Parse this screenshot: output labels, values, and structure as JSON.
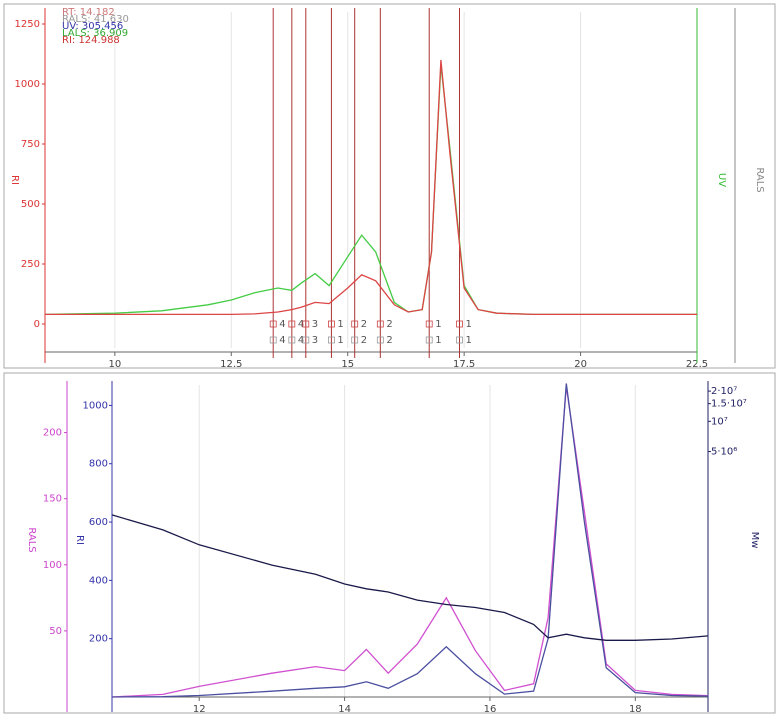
{
  "chart_data": [
    {
      "type": "line",
      "legend": [
        {
          "label": "RT: 14.182",
          "color": "#c77"
        },
        {
          "label": "RALS: 41.630",
          "color": "#999"
        },
        {
          "label": "UV: 305.456",
          "color": "#33a"
        },
        {
          "label": "LALS: 36.909",
          "color": "#3a3"
        },
        {
          "label": "RI: 124.988",
          "color": "#c33"
        }
      ],
      "ylabel": "RI",
      "ycolor": "#d33",
      "y2label": "UV",
      "y2color": "#3b3",
      "y3label": "RALS",
      "y3color": "#888",
      "xlim": [
        8.5,
        22.5
      ],
      "xticks": [
        10,
        12.5,
        15,
        17.5,
        20,
        22.5
      ],
      "ylim": [
        -100,
        1300
      ],
      "yticks": [
        0,
        250,
        500,
        750,
        1000,
        1250
      ],
      "grid": true,
      "x": [
        8.5,
        10,
        11,
        12,
        12.5,
        13,
        13.5,
        13.8,
        14,
        14.3,
        14.6,
        15,
        15.3,
        15.6,
        16,
        16.3,
        16.6,
        16.8,
        17,
        17.2,
        17.5,
        17.8,
        18.2,
        19,
        20,
        22.5
      ],
      "series": [
        {
          "name": "UV",
          "color": "#4c4",
          "values": [
            40,
            45,
            55,
            80,
            100,
            130,
            150,
            140,
            170,
            210,
            160,
            280,
            370,
            300,
            90,
            50,
            60,
            300,
            1080,
            720,
            160,
            60,
            45,
            40,
            40,
            40
          ]
        },
        {
          "name": "RI",
          "color": "#d44",
          "values": [
            40,
            40,
            40,
            40,
            40,
            42,
            50,
            60,
            70,
            90,
            85,
            150,
            205,
            180,
            80,
            50,
            60,
            300,
            1100,
            700,
            150,
            60,
            45,
            40,
            40,
            40
          ]
        }
      ],
      "markers": [
        {
          "x": 13.4,
          "label": "4"
        },
        {
          "x": 13.8,
          "label": "4"
        },
        {
          "x": 14.1,
          "label": "3"
        },
        {
          "x": 14.65,
          "label": "1"
        },
        {
          "x": 15.15,
          "label": "2"
        },
        {
          "x": 15.7,
          "label": "2"
        },
        {
          "x": 16.75,
          "label": "1"
        },
        {
          "x": 17.4,
          "label": "1"
        }
      ]
    },
    {
      "type": "line",
      "ylabel": "RI",
      "ycolor": "#33a",
      "y2label": "Mw",
      "y2color": "#226",
      "y3label": "RALS",
      "y3color": "#c4c",
      "xlim": [
        10.8,
        19
      ],
      "xticks": [
        12,
        14,
        16,
        18
      ],
      "ylim": [
        0,
        1070
      ],
      "yticks": [
        200,
        400,
        600,
        800,
        1000
      ],
      "y2lim": [
        18000,
        23000000
      ],
      "y2log": true,
      "y2ticks": [
        {
          "value": 20000000,
          "label": "2·10⁷"
        },
        {
          "value": 15000000,
          "label": "1.5·10⁷"
        },
        {
          "value": 10000000,
          "label": "10⁷"
        },
        {
          "value": 5000000,
          "label": "5·10⁶"
        }
      ],
      "y3lim": [
        0,
        236
      ],
      "y3ticks": [
        50,
        100,
        150,
        200
      ],
      "grid": true,
      "x": [
        10.8,
        11.5,
        12,
        13,
        13.6,
        14,
        14.3,
        14.6,
        15,
        15.4,
        15.8,
        16.2,
        16.6,
        16.8,
        17.05,
        17.3,
        17.6,
        18,
        18.5,
        19
      ],
      "series": [
        {
          "name": "RALS",
          "color": "#d050d0",
          "axis": "y3",
          "values": [
            0,
            2,
            8,
            18,
            23,
            20,
            36,
            18,
            40,
            75,
            35,
            5,
            10,
            60,
            235,
            140,
            25,
            5,
            2,
            1
          ]
        },
        {
          "name": "RI",
          "color": "#4a4f9f",
          "values": [
            0,
            1,
            5,
            20,
            30,
            35,
            52,
            30,
            80,
            172,
            80,
            10,
            20,
            200,
            1075,
            600,
            100,
            15,
            5,
            3
          ]
        },
        {
          "name": "Mw",
          "color": "#1a1a4a",
          "axis": "y2",
          "values": [
            1170000,
            830000,
            590000,
            370000,
            300000,
            240000,
            215000,
            200000,
            166000,
            150000,
            140000,
            125000,
            95000,
            70000,
            76000,
            70000,
            66000,
            66000,
            68000,
            73000
          ]
        }
      ]
    }
  ]
}
